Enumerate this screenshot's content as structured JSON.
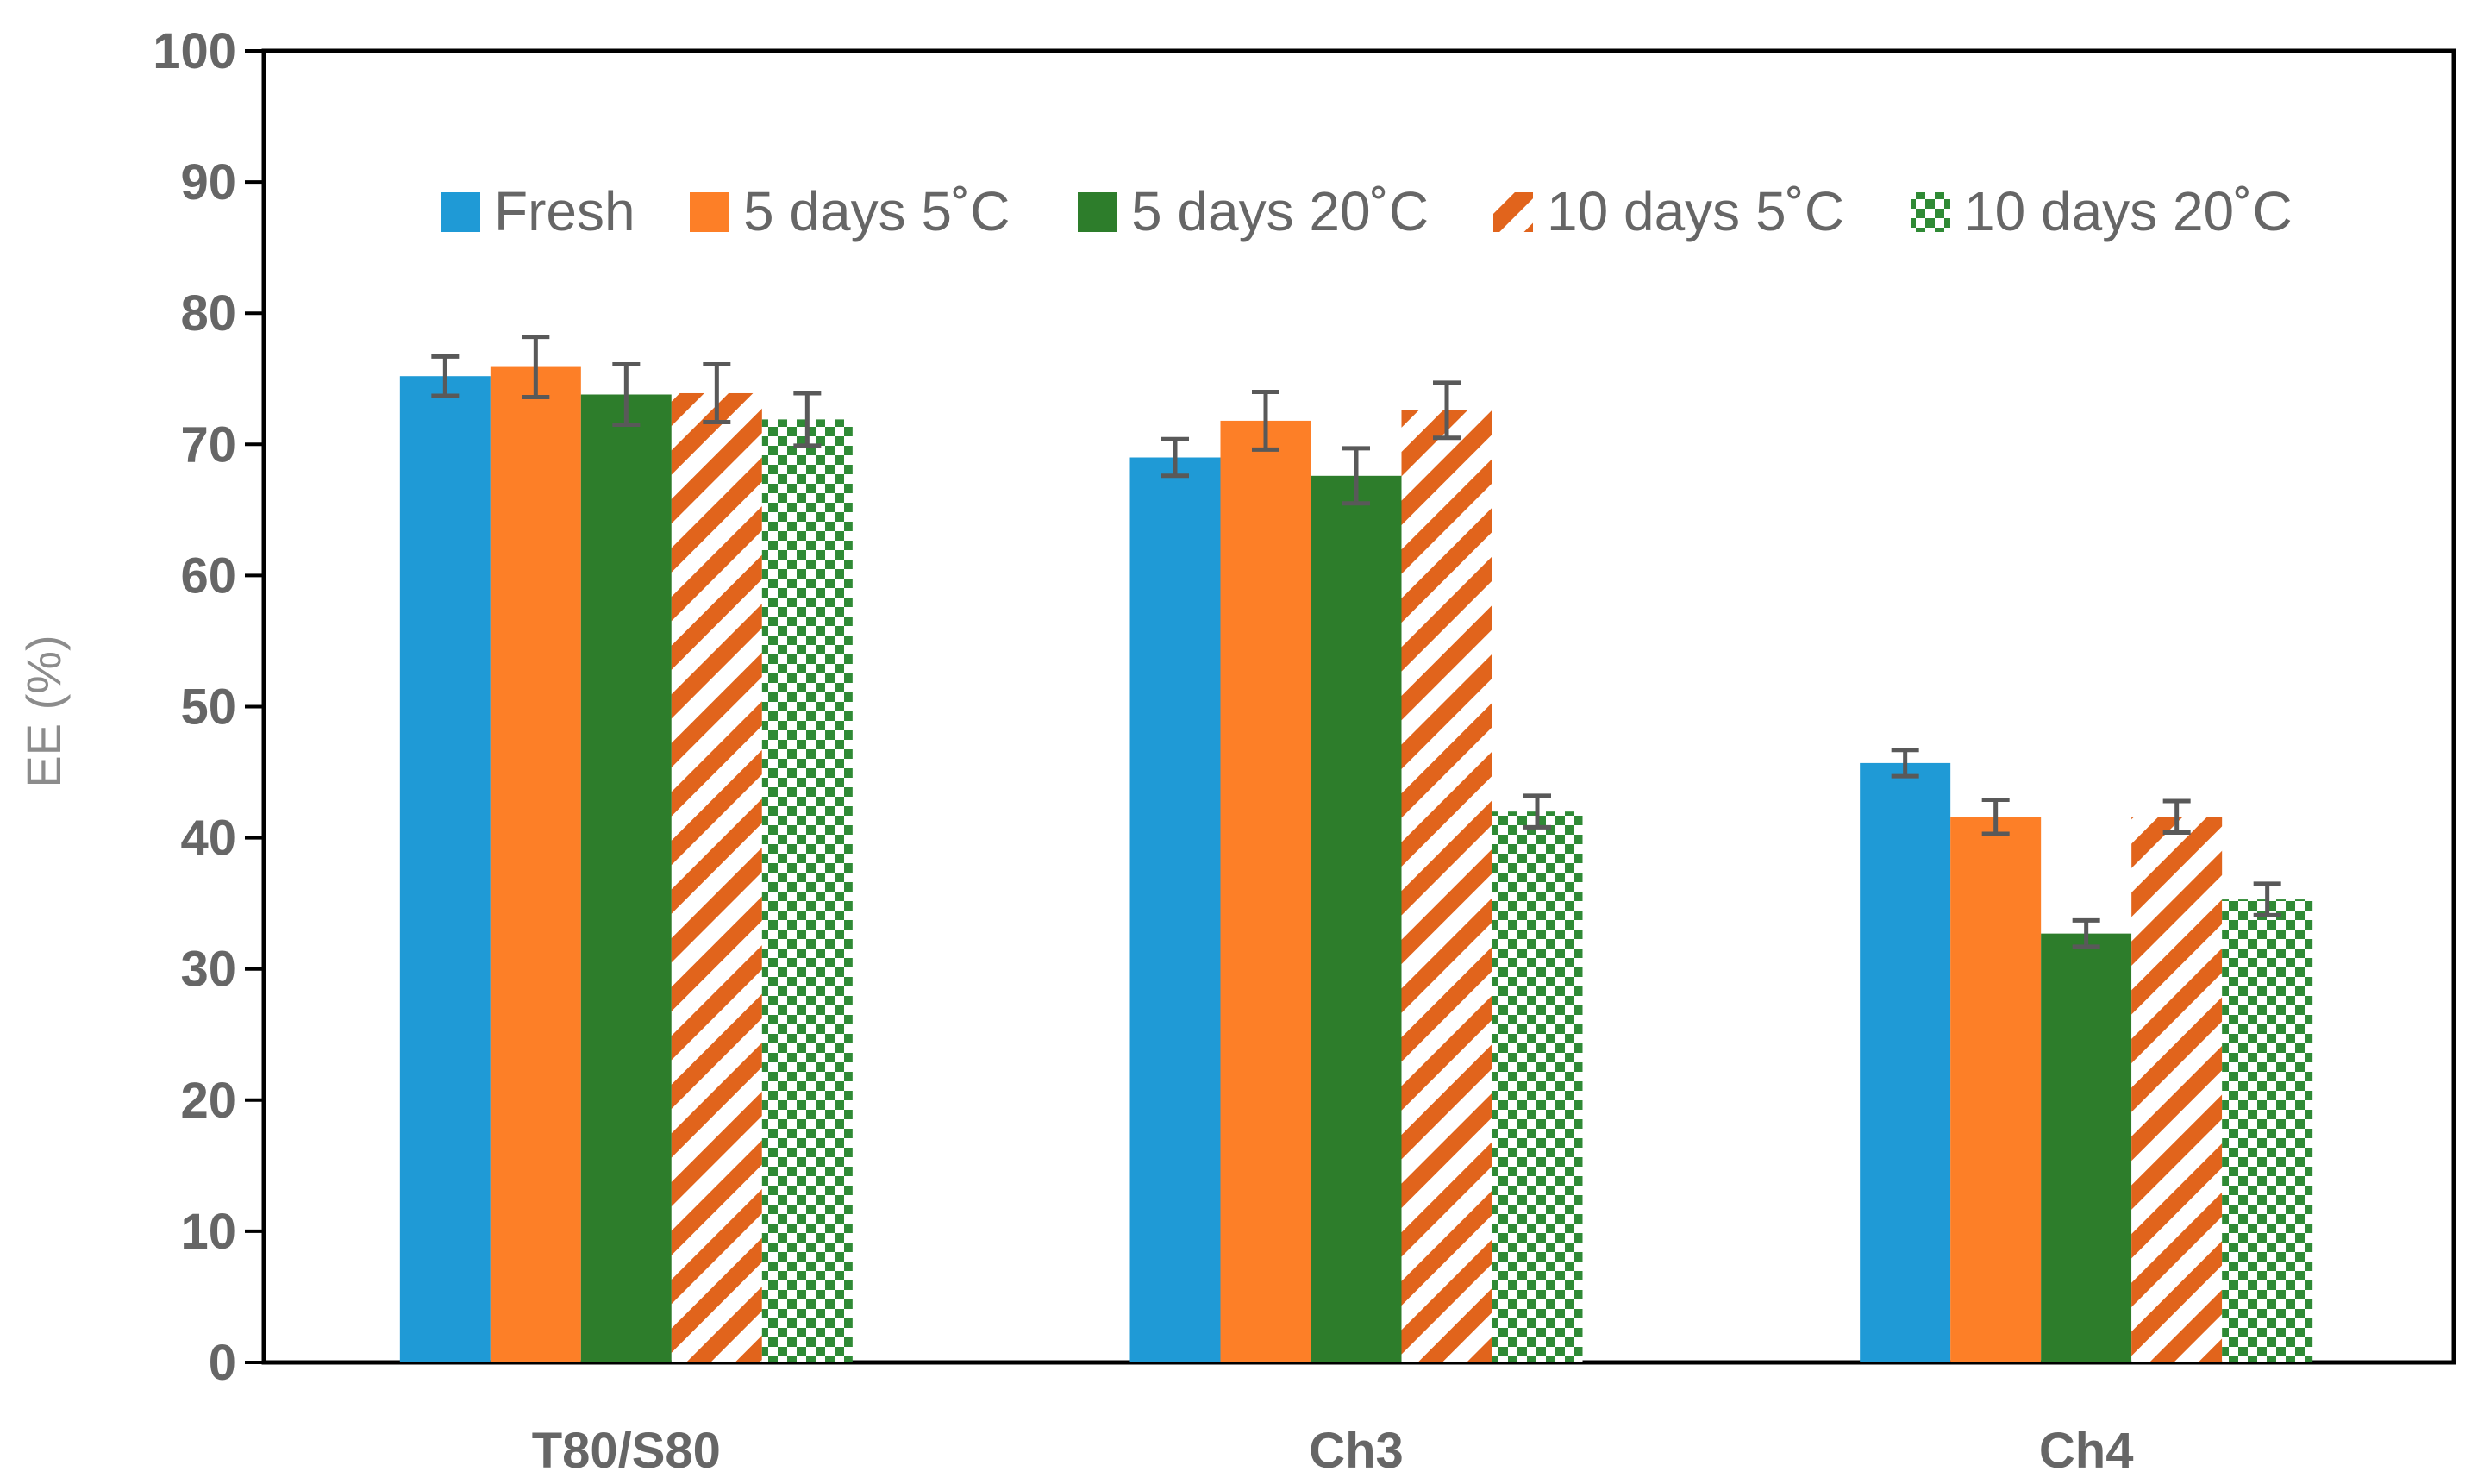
{
  "chart_data": {
    "type": "bar",
    "title": "",
    "xlabel": "",
    "ylabel": "EE (%)",
    "ylim": [
      0,
      100
    ],
    "yticks": [
      "0",
      "10",
      "20",
      "30",
      "40",
      "50",
      "60",
      "70",
      "80",
      "90",
      "100"
    ],
    "categories": [
      "T80/S80",
      "Ch3",
      "Ch4"
    ],
    "legend_position": "top",
    "series": [
      {
        "name": "Fresh",
        "pattern": "solid",
        "color": "#1f9ad6",
        "values": [
          75.2,
          69.0,
          45.7
        ],
        "errors": [
          1.5,
          1.4,
          1.0
        ]
      },
      {
        "name": "5 days 5˚C",
        "pattern": "solid",
        "color": "#fd7f27",
        "values": [
          75.9,
          71.8,
          41.6
        ],
        "errors": [
          2.3,
          2.2,
          1.3
        ]
      },
      {
        "name": "5 days 20˚C",
        "pattern": "solid",
        "color": "#2d7d2b",
        "values": [
          73.8,
          67.6,
          32.7
        ],
        "errors": [
          2.3,
          2.1,
          1.0
        ]
      },
      {
        "name": "10 days 5˚C",
        "pattern": "diagonal",
        "color": "#e1641c",
        "values": [
          73.9,
          72.6,
          41.6
        ],
        "errors": [
          2.2,
          2.1,
          1.2
        ]
      },
      {
        "name": "10 days 20˚C",
        "pattern": "checker",
        "color": "#2f8a35",
        "values": [
          71.9,
          42.0,
          35.3
        ],
        "errors": [
          2.0,
          1.2,
          1.2
        ]
      }
    ]
  }
}
